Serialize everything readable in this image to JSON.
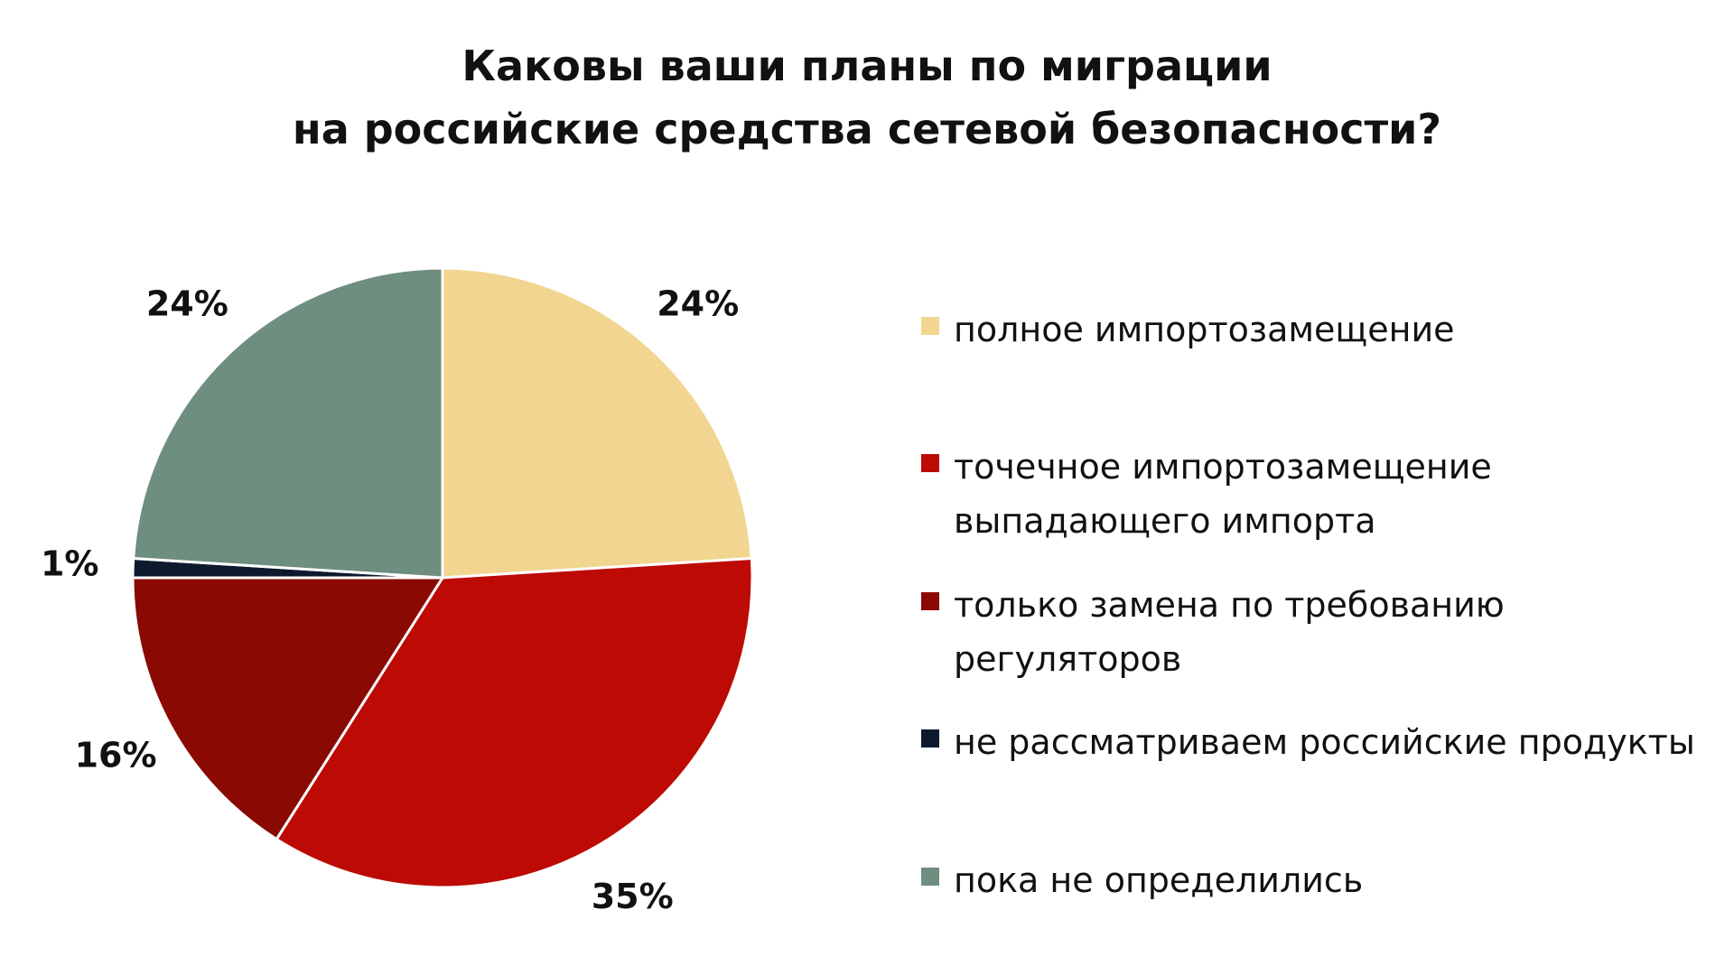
{
  "chart_data": {
    "type": "pie",
    "title_lines": [
      "Каковы ваши планы по миграции",
      "на российские средства сетевой безопасности?"
    ],
    "slices": [
      {
        "label": "полное импортозамещение",
        "value": 24,
        "value_label": "24%",
        "color": "#F2D591"
      },
      {
        "label": "точечное импортозамещение\nвыпадающего импорта",
        "value": 35,
        "value_label": "35%",
        "color": "#BD0A04"
      },
      {
        "label": "только замена по требованию регуляторов",
        "value": 16,
        "value_label": "16%",
        "color": "#8A0A03"
      },
      {
        "label": "не рассматриваем российские продукты",
        "value": 1,
        "value_label": "1%",
        "color": "#0D1A2E"
      },
      {
        "label": "пока не определились",
        "value": 24,
        "value_label": "24%",
        "color": "#6E8E80"
      }
    ],
    "legend_position": "right"
  }
}
